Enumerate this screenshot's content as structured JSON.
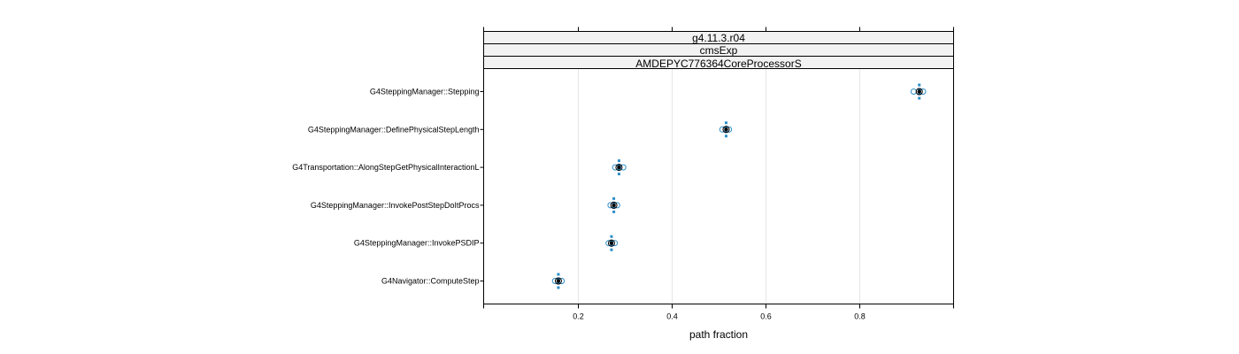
{
  "chart_data": {
    "type": "scatter",
    "strips": [
      "g4.11.3.r04",
      "cmsExp",
      "AMDEPYC776364CoreProcessorS"
    ],
    "categories": [
      "G4SteppingManager::Stepping",
      "G4SteppingManager::DefinePhysicalStepLength",
      "G4Transportation::AlongStepGetPhysicalInteractionL",
      "G4SteppingManager::InvokePostStepDoItProcs",
      "G4SteppingManager::InvokePSDIP",
      "G4Navigator::ComputeStep"
    ],
    "points": [
      {
        "value": 0.927,
        "low": 0.915,
        "high": 0.935
      },
      {
        "value": 0.516,
        "low": 0.508,
        "high": 0.522
      },
      {
        "value": 0.288,
        "low": 0.28,
        "high": 0.297
      },
      {
        "value": 0.277,
        "low": 0.27,
        "high": 0.284
      },
      {
        "value": 0.272,
        "low": 0.266,
        "high": 0.279
      },
      {
        "value": 0.159,
        "low": 0.152,
        "high": 0.166
      }
    ],
    "xticks": [
      0.2,
      0.4,
      0.6,
      0.8
    ],
    "xtick_labels": [
      "0.2",
      "0.4",
      "0.6",
      "0.8"
    ],
    "xlim": [
      0.0,
      1.0
    ],
    "xlabel": "path fraction",
    "grid": true,
    "colors": {
      "interval": "#2c8fc9",
      "point": "#000000",
      "grid": "#e6e6e6",
      "strip": "#f2f2f2"
    }
  }
}
